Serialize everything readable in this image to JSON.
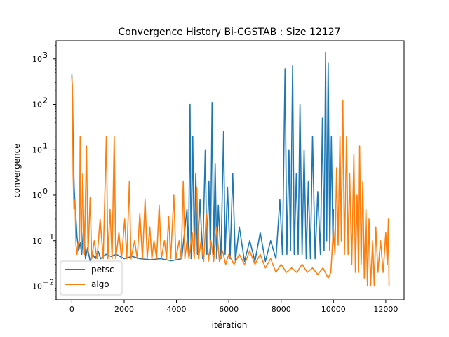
{
  "chart_data": {
    "type": "line",
    "title": "Convergence History Bi-CGSTAB : Size 12127",
    "xlabel": "itération",
    "ylabel": "convergence",
    "yscale": "log",
    "xlim": [
      -600,
      12700
    ],
    "ylim": [
      0.005,
      2500
    ],
    "x_ticks": [
      0,
      2000,
      4000,
      6000,
      8000,
      10000,
      12000
    ],
    "x_tick_labels": [
      "0",
      "2000",
      "4000",
      "6000",
      "8000",
      "10000",
      "12000"
    ],
    "y_ticks": [
      0.01,
      0.1,
      1,
      10,
      100,
      1000
    ],
    "y_tick_labels": [
      "10",
      "10",
      "10",
      "10",
      "10",
      "10"
    ],
    "y_tick_exponents": [
      "−2",
      "−1",
      "0",
      "1",
      "2",
      "3"
    ],
    "grid": false,
    "legend_position": "lower-left",
    "series": [
      {
        "name": "petsc",
        "color": "#1f77b4",
        "points": [
          [
            0,
            450
          ],
          [
            30,
            120
          ],
          [
            60,
            8
          ],
          [
            90,
            1.5
          ],
          [
            120,
            0.6
          ],
          [
            160,
            0.3
          ],
          [
            200,
            0.12
          ],
          [
            260,
            0.06
          ],
          [
            320,
            0.09
          ],
          [
            380,
            0.05
          ],
          [
            450,
            0.2
          ],
          [
            520,
            0.04
          ],
          [
            600,
            0.07
          ],
          [
            700,
            0.035
          ],
          [
            800,
            0.05
          ],
          [
            900,
            0.04
          ],
          [
            1000,
            0.06
          ],
          [
            1100,
            0.04
          ],
          [
            1300,
            0.05
          ],
          [
            1500,
            0.045
          ],
          [
            1700,
            0.05
          ],
          [
            2000,
            0.04
          ],
          [
            2300,
            0.045
          ],
          [
            2600,
            0.04
          ],
          [
            3000,
            0.038
          ],
          [
            3400,
            0.04
          ],
          [
            3800,
            0.036
          ],
          [
            4200,
            0.04
          ],
          [
            4400,
            0.5
          ],
          [
            4460,
            0.05
          ],
          [
            4520,
            100
          ],
          [
            4560,
            0.04
          ],
          [
            4620,
            20
          ],
          [
            4680,
            0.06
          ],
          [
            4740,
            3
          ],
          [
            4800,
            0.05
          ],
          [
            4900,
            0.8
          ],
          [
            5000,
            0.04
          ],
          [
            5100,
            10
          ],
          [
            5160,
            0.05
          ],
          [
            5240,
            2
          ],
          [
            5300,
            0.05
          ],
          [
            5360,
            110
          ],
          [
            5420,
            0.05
          ],
          [
            5480,
            5
          ],
          [
            5540,
            0.04
          ],
          [
            5600,
            0.6
          ],
          [
            5700,
            0.04
          ],
          [
            5800,
            25
          ],
          [
            5860,
            0.05
          ],
          [
            5950,
            1.5
          ],
          [
            6050,
            0.04
          ],
          [
            6150,
            3
          ],
          [
            6250,
            0.035
          ],
          [
            6400,
            0.2
          ],
          [
            6600,
            0.035
          ],
          [
            6800,
            0.1
          ],
          [
            7000,
            0.035
          ],
          [
            7200,
            0.15
          ],
          [
            7400,
            0.035
          ],
          [
            7600,
            0.1
          ],
          [
            7800,
            0.04
          ],
          [
            7950,
            0.8
          ],
          [
            8050,
            0.05
          ],
          [
            8150,
            600
          ],
          [
            8220,
            0.05
          ],
          [
            8300,
            10
          ],
          [
            8360,
            0.06
          ],
          [
            8440,
            700
          ],
          [
            8500,
            0.05
          ],
          [
            8580,
            3
          ],
          [
            8650,
            0.05
          ],
          [
            8720,
            100
          ],
          [
            8800,
            0.05
          ],
          [
            8880,
            10
          ],
          [
            8960,
            0.04
          ],
          [
            9040,
            2
          ],
          [
            9120,
            0.04
          ],
          [
            9200,
            20
          ],
          [
            9300,
            0.04
          ],
          [
            9400,
            1.2
          ],
          [
            9500,
            0.05
          ],
          [
            9580,
            50
          ],
          [
            9640,
            0.06
          ],
          [
            9700,
            1400
          ],
          [
            9740,
            0.1
          ],
          [
            9800,
            800
          ],
          [
            9860,
            0.06
          ],
          [
            9920,
            20
          ],
          [
            9980,
            0.08
          ],
          [
            10000,
            0.5
          ]
        ]
      },
      {
        "name": "algo",
        "color": "#ff7f0e",
        "points": [
          [
            0,
            420
          ],
          [
            20,
            250
          ],
          [
            50,
            3
          ],
          [
            80,
            0.5
          ],
          [
            120,
            0.8
          ],
          [
            160,
            0.08
          ],
          [
            200,
            0.05
          ],
          [
            240,
            0.09
          ],
          [
            290,
            0.1
          ],
          [
            320,
            20
          ],
          [
            360,
            0.06
          ],
          [
            420,
            3
          ],
          [
            480,
            0.05
          ],
          [
            560,
            12
          ],
          [
            620,
            0.05
          ],
          [
            700,
            0.9
          ],
          [
            760,
            0.04
          ],
          [
            860,
            0.1
          ],
          [
            960,
            0.04
          ],
          [
            1080,
            0.3
          ],
          [
            1200,
            0.04
          ],
          [
            1320,
            20
          ],
          [
            1380,
            0.04
          ],
          [
            1460,
            0.5
          ],
          [
            1540,
            0.04
          ],
          [
            1620,
            20
          ],
          [
            1680,
            0.04
          ],
          [
            1800,
            0.15
          ],
          [
            1900,
            0.04
          ],
          [
            2020,
            0.3
          ],
          [
            2100,
            0.04
          ],
          [
            2200,
            2
          ],
          [
            2260,
            0.04
          ],
          [
            2400,
            0.1
          ],
          [
            2500,
            0.04
          ],
          [
            2600,
            0.4
          ],
          [
            2700,
            0.04
          ],
          [
            2800,
            0.8
          ],
          [
            2880,
            0.04
          ],
          [
            2980,
            0.2
          ],
          [
            3060,
            0.04
          ],
          [
            3140,
            0.1
          ],
          [
            3240,
            0.04
          ],
          [
            3340,
            0.6
          ],
          [
            3420,
            0.04
          ],
          [
            3540,
            0.1
          ],
          [
            3620,
            0.04
          ],
          [
            3700,
            0.35
          ],
          [
            3780,
            0.04
          ],
          [
            3900,
            1
          ],
          [
            3980,
            0.04
          ],
          [
            4100,
            0.1
          ],
          [
            4180,
            0.04
          ],
          [
            4260,
            2
          ],
          [
            4320,
            0.04
          ],
          [
            4400,
            0.1
          ],
          [
            4480,
            0.04
          ],
          [
            4600,
            0.15
          ],
          [
            4680,
            0.04
          ],
          [
            4780,
            1.5
          ],
          [
            4840,
            0.04
          ],
          [
            4940,
            0.1
          ],
          [
            5040,
            0.035
          ],
          [
            5140,
            0.4
          ],
          [
            5220,
            0.035
          ],
          [
            5320,
            0.1
          ],
          [
            5420,
            0.035
          ],
          [
            5540,
            0.2
          ],
          [
            5640,
            0.035
          ],
          [
            5760,
            0.06
          ],
          [
            5880,
            0.03
          ],
          [
            6000,
            0.05
          ],
          [
            6200,
            0.03
          ],
          [
            6400,
            0.05
          ],
          [
            6600,
            0.03
          ],
          [
            6800,
            0.06
          ],
          [
            7000,
            0.03
          ],
          [
            7200,
            0.05
          ],
          [
            7400,
            0.025
          ],
          [
            7600,
            0.04
          ],
          [
            7800,
            0.02
          ],
          [
            8000,
            0.03
          ],
          [
            8200,
            0.02
          ],
          [
            8400,
            0.025
          ],
          [
            8600,
            0.02
          ],
          [
            8800,
            0.03
          ],
          [
            9000,
            0.02
          ],
          [
            9200,
            0.025
          ],
          [
            9400,
            0.018
          ],
          [
            9600,
            0.025
          ],
          [
            9800,
            0.015
          ],
          [
            9900,
            0.02
          ],
          [
            10000,
            0.2
          ],
          [
            10060,
            0.05
          ],
          [
            10120,
            4
          ],
          [
            10180,
            0.08
          ],
          [
            10250,
            20
          ],
          [
            10300,
            0.1
          ],
          [
            10360,
            120
          ],
          [
            10420,
            0.05
          ],
          [
            10500,
            20
          ],
          [
            10560,
            0.05
          ],
          [
            10620,
            3
          ],
          [
            10700,
            0.03
          ],
          [
            10780,
            8
          ],
          [
            10840,
            0.02
          ],
          [
            10900,
            1
          ],
          [
            10960,
            0.02
          ],
          [
            11000,
            12
          ],
          [
            11060,
            0.03
          ],
          [
            11120,
            2
          ],
          [
            11180,
            0.015
          ],
          [
            11240,
            0.5
          ],
          [
            11300,
            0.01
          ],
          [
            11360,
            0.3
          ],
          [
            11420,
            0.01
          ],
          [
            11500,
            0.1
          ],
          [
            11560,
            0.01
          ],
          [
            11620,
            0.2
          ],
          [
            11700,
            0.02
          ],
          [
            11800,
            0.1
          ],
          [
            11900,
            0.02
          ],
          [
            12000,
            0.15
          ],
          [
            12060,
            0.03
          ],
          [
            12100,
            0.3
          ],
          [
            12127,
            0.01
          ]
        ]
      }
    ]
  }
}
